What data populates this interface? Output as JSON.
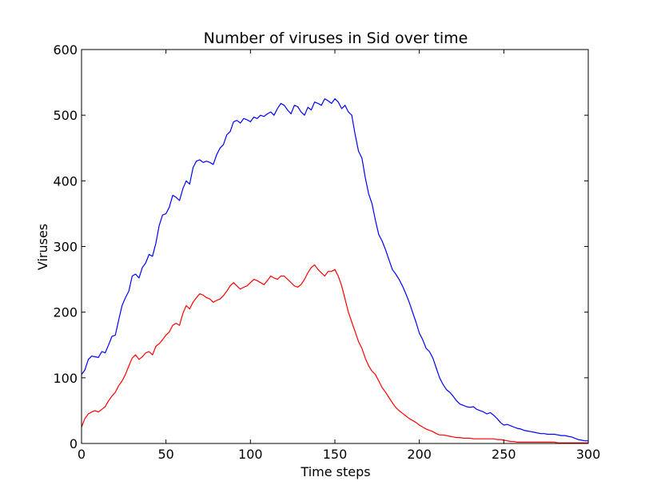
{
  "chart_data": {
    "type": "line",
    "title": "Number of viruses in Sid over time",
    "xlabel": "Time steps",
    "ylabel": "Viruses",
    "xlim": [
      0,
      300
    ],
    "ylim": [
      0,
      600
    ],
    "xticks": [
      0,
      50,
      100,
      150,
      200,
      250,
      300
    ],
    "yticks": [
      0,
      100,
      200,
      300,
      400,
      500,
      600
    ],
    "grid": false,
    "legend": "none",
    "series": [
      {
        "color": "#0000ff",
        "x": [
          0,
          2,
          4,
          6,
          8,
          10,
          12,
          14,
          16,
          18,
          20,
          22,
          24,
          26,
          28,
          30,
          32,
          34,
          36,
          38,
          40,
          42,
          44,
          46,
          48,
          50,
          52,
          54,
          56,
          58,
          60,
          62,
          64,
          66,
          68,
          70,
          72,
          74,
          76,
          78,
          80,
          82,
          84,
          86,
          88,
          90,
          92,
          94,
          96,
          98,
          100,
          102,
          104,
          106,
          108,
          110,
          112,
          114,
          116,
          118,
          120,
          122,
          124,
          126,
          128,
          130,
          132,
          134,
          136,
          138,
          140,
          142,
          144,
          146,
          148,
          150,
          152,
          154,
          156,
          158,
          160,
          162,
          164,
          166,
          168,
          170,
          172,
          174,
          176,
          178,
          180,
          182,
          184,
          186,
          188,
          190,
          192,
          194,
          196,
          198,
          200,
          202,
          204,
          206,
          208,
          210,
          212,
          214,
          216,
          218,
          220,
          222,
          224,
          226,
          228,
          230,
          232,
          234,
          236,
          238,
          240,
          242,
          244,
          246,
          248,
          250,
          252,
          254,
          256,
          258,
          260,
          262,
          264,
          266,
          268,
          270,
          272,
          274,
          276,
          278,
          280,
          282,
          284,
          286,
          288,
          290,
          292,
          294,
          296,
          298,
          300
        ],
        "y": [
          105,
          112,
          128,
          133,
          132,
          131,
          140,
          138,
          150,
          163,
          165,
          188,
          210,
          222,
          232,
          255,
          258,
          252,
          268,
          275,
          288,
          285,
          305,
          332,
          348,
          350,
          360,
          378,
          375,
          370,
          388,
          400,
          395,
          420,
          430,
          432,
          428,
          430,
          428,
          425,
          440,
          450,
          455,
          470,
          475,
          490,
          492,
          488,
          495,
          493,
          490,
          497,
          495,
          500,
          498,
          502,
          505,
          500,
          510,
          518,
          515,
          508,
          502,
          515,
          513,
          505,
          500,
          512,
          508,
          520,
          518,
          515,
          525,
          522,
          518,
          525,
          520,
          510,
          515,
          505,
          500,
          470,
          445,
          435,
          405,
          380,
          365,
          340,
          318,
          308,
          295,
          280,
          265,
          258,
          250,
          240,
          228,
          215,
          200,
          185,
          168,
          158,
          145,
          140,
          130,
          115,
          100,
          90,
          82,
          78,
          72,
          65,
          60,
          58,
          56,
          55,
          56,
          52,
          50,
          48,
          45,
          47,
          43,
          38,
          32,
          28,
          29,
          27,
          25,
          23,
          22,
          20,
          19,
          18,
          17,
          16,
          15,
          15,
          14,
          14,
          14,
          13,
          12,
          12,
          11,
          10,
          8,
          6,
          5,
          4,
          4
        ]
      },
      {
        "color": "#ff0000",
        "x": [
          0,
          2,
          4,
          6,
          8,
          10,
          12,
          14,
          16,
          18,
          20,
          22,
          24,
          26,
          28,
          30,
          32,
          34,
          36,
          38,
          40,
          42,
          44,
          46,
          48,
          50,
          52,
          54,
          56,
          58,
          60,
          62,
          64,
          66,
          68,
          70,
          72,
          74,
          76,
          78,
          80,
          82,
          84,
          86,
          88,
          90,
          92,
          94,
          96,
          98,
          100,
          102,
          104,
          106,
          108,
          110,
          112,
          114,
          116,
          118,
          120,
          122,
          124,
          126,
          128,
          130,
          132,
          134,
          136,
          138,
          140,
          142,
          144,
          146,
          148,
          150,
          152,
          154,
          156,
          158,
          160,
          162,
          164,
          166,
          168,
          170,
          172,
          174,
          176,
          178,
          180,
          182,
          184,
          186,
          188,
          190,
          192,
          194,
          196,
          198,
          200,
          202,
          204,
          206,
          208,
          210,
          212,
          214,
          216,
          218,
          220,
          222,
          224,
          226,
          228,
          230,
          232,
          234,
          236,
          238,
          240,
          242,
          244,
          246,
          248,
          250,
          252,
          254,
          256,
          258,
          260,
          262,
          264,
          266,
          268,
          270,
          272,
          274,
          276,
          278,
          280,
          282,
          284,
          286,
          288,
          290,
          292,
          294,
          296,
          298,
          300
        ],
        "y": [
          25,
          38,
          45,
          48,
          50,
          48,
          52,
          56,
          65,
          72,
          78,
          88,
          95,
          105,
          118,
          130,
          135,
          128,
          132,
          138,
          140,
          135,
          148,
          152,
          158,
          165,
          170,
          180,
          183,
          180,
          198,
          210,
          205,
          215,
          222,
          228,
          226,
          222,
          220,
          215,
          218,
          220,
          225,
          232,
          240,
          245,
          240,
          235,
          238,
          240,
          245,
          250,
          248,
          245,
          242,
          248,
          255,
          252,
          250,
          255,
          255,
          250,
          245,
          240,
          238,
          242,
          250,
          260,
          268,
          272,
          265,
          260,
          255,
          262,
          262,
          265,
          255,
          240,
          220,
          200,
          185,
          170,
          155,
          145,
          130,
          118,
          110,
          105,
          95,
          85,
          78,
          70,
          62,
          55,
          50,
          46,
          42,
          38,
          35,
          32,
          28,
          25,
          22,
          20,
          18,
          15,
          13,
          13,
          12,
          11,
          10,
          9,
          9,
          8,
          8,
          8,
          7,
          7,
          7,
          7,
          7,
          7,
          7,
          6,
          6,
          5,
          4,
          3,
          3,
          2,
          2,
          2,
          2,
          2,
          2,
          2,
          2,
          2,
          2,
          2,
          2,
          1,
          1,
          1,
          1,
          1,
          1,
          1,
          1,
          1,
          1
        ]
      }
    ]
  }
}
